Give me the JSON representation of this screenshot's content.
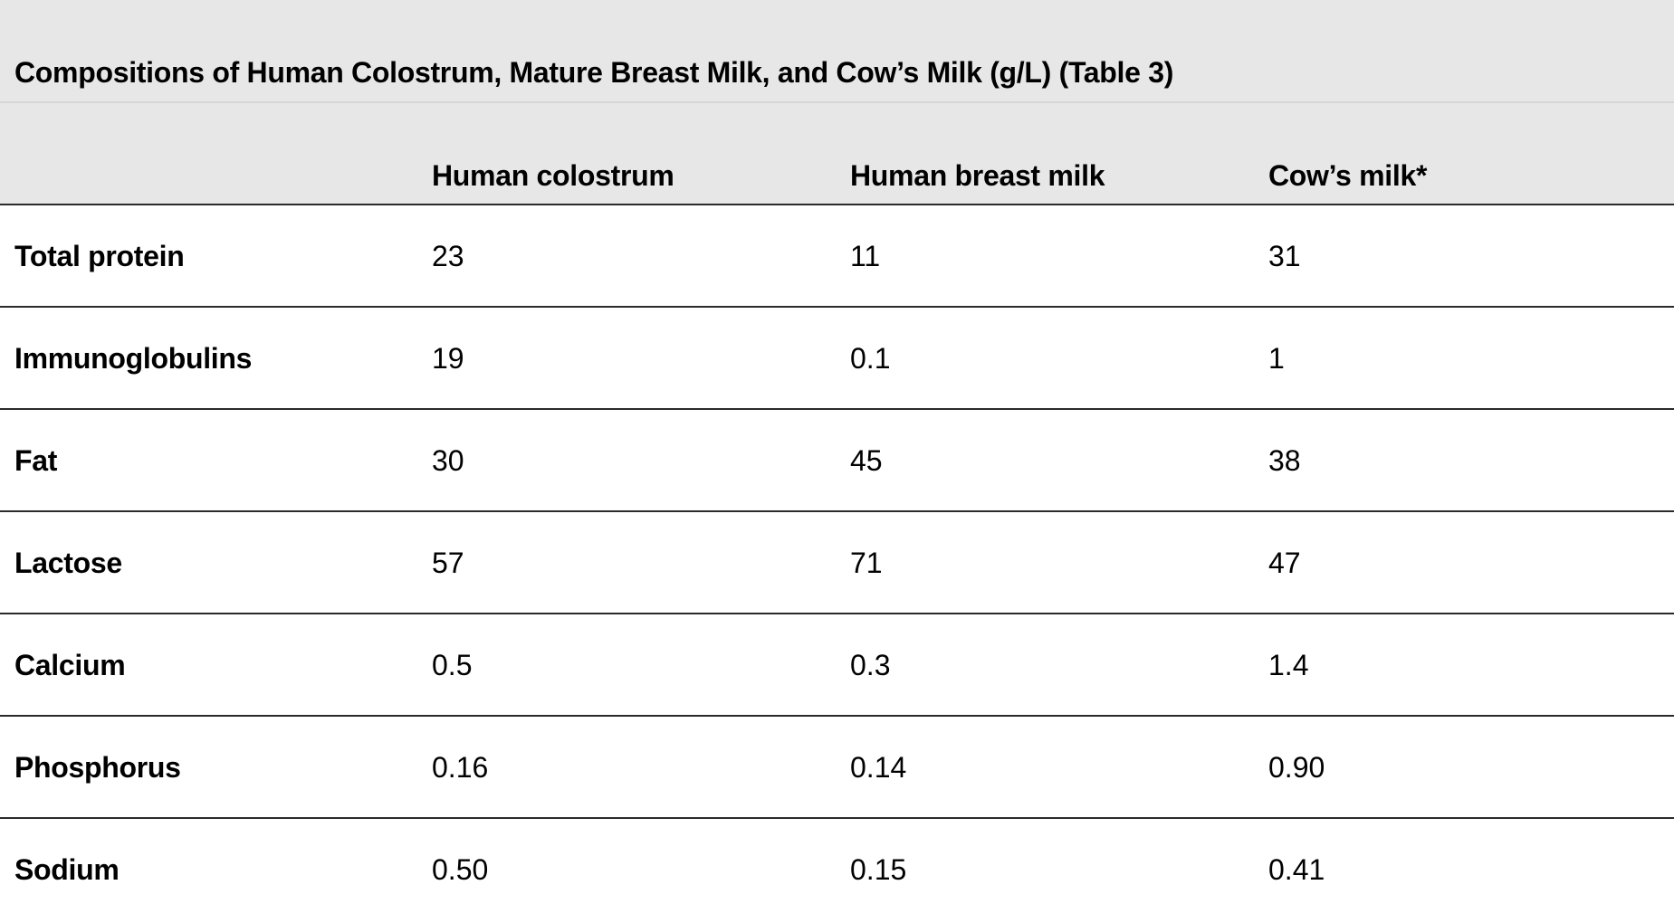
{
  "table": {
    "caption": "Compositions of Human Colostrum, Mature Breast Milk, and Cow’s Milk (g/L) (Table 3)",
    "columns": [
      "",
      "Human colostrum",
      "Human breast milk",
      "Cow’s milk*"
    ],
    "rows": [
      {
        "label": "Total protein",
        "values": [
          "23",
          "11",
          "31"
        ]
      },
      {
        "label": "Immunoglobulins",
        "values": [
          "19",
          "0.1",
          "1"
        ]
      },
      {
        "label": "Fat",
        "values": [
          "30",
          "45",
          "38"
        ]
      },
      {
        "label": "Lactose",
        "values": [
          "57",
          "71",
          "47"
        ]
      },
      {
        "label": "Calcium",
        "values": [
          "0.5",
          "0.3",
          "1.4"
        ]
      },
      {
        "label": "Phosphorus",
        "values": [
          "0.16",
          "0.14",
          "0.90"
        ]
      },
      {
        "label": "Sodium",
        "values": [
          "0.50",
          "0.15",
          "0.41"
        ]
      }
    ]
  }
}
